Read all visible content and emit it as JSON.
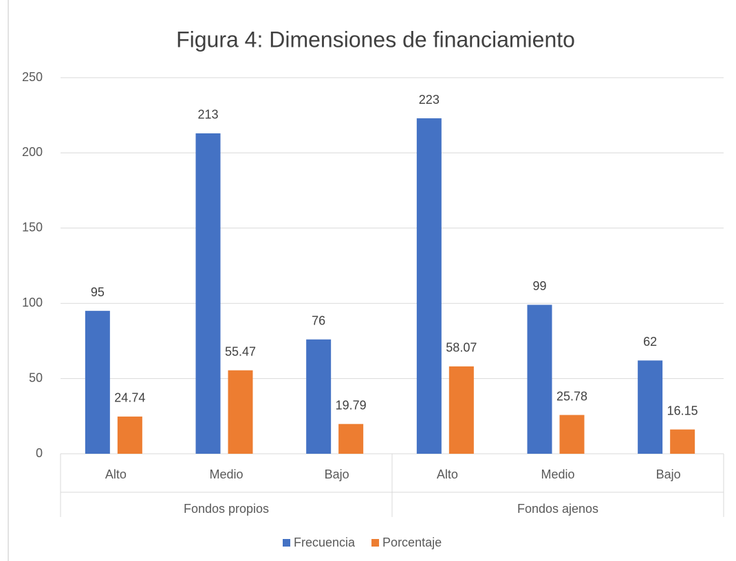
{
  "chart_data": {
    "type": "bar",
    "title": "Figura 4: Dimensiones de financiamiento",
    "groups": [
      {
        "name": "Fondos propios",
        "categories": [
          "Alto",
          "Medio",
          "Bajo"
        ]
      },
      {
        "name": "Fondos ajenos",
        "categories": [
          "Alto",
          "Medio",
          "Bajo"
        ]
      }
    ],
    "series": [
      {
        "name": "Frecuencia",
        "color": "#4472c4",
        "values": [
          95,
          213,
          76,
          223,
          99,
          62
        ]
      },
      {
        "name": "Porcentaje",
        "color": "#ed7d31",
        "values": [
          24.74,
          55.47,
          19.79,
          58.07,
          25.78,
          16.15
        ]
      }
    ],
    "ylim": [
      0,
      250
    ],
    "yticks": [
      0,
      50,
      100,
      150,
      200,
      250
    ],
    "grid": true,
    "legend": "bottom"
  }
}
